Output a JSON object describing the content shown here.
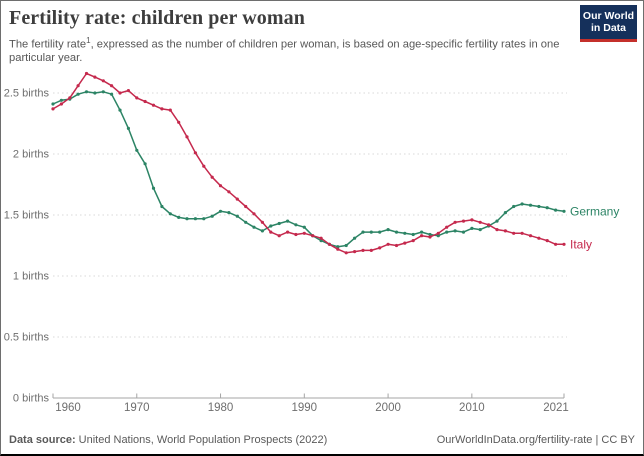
{
  "header": {
    "title": "Fertility rate: children per woman",
    "subtitle_text": "The fertility rate",
    "subtitle_sup": "1",
    "subtitle_rest": ", expressed as the number of children per woman, is based on age-specific fertility rates in one",
    "subtitle_line2": "particular year."
  },
  "logo": {
    "line1": "Our World",
    "line2": "in Data",
    "bg": "#15305B",
    "accent": "#C4302B"
  },
  "chart_data": {
    "type": "line",
    "title": "Fertility rate: children per woman",
    "xlabel": "",
    "ylabel": "births",
    "xlim": [
      1960,
      2021
    ],
    "ylim": [
      0,
      2.72
    ],
    "grid": "horizontal-dotted",
    "legend": "line-end-labels",
    "colors": {
      "grid": "#d8d8d8",
      "axis": "#a5a5a5",
      "tick_text": "#6e6e6e"
    },
    "yticks": [
      {
        "value": 0,
        "label": "0 births"
      },
      {
        "value": 0.5,
        "label": "0.5 births"
      },
      {
        "value": 1,
        "label": "1 births"
      },
      {
        "value": 1.5,
        "label": "1.5 births"
      },
      {
        "value": 2,
        "label": "2 births"
      },
      {
        "value": 2.5,
        "label": "2.5 births"
      }
    ],
    "xticks": [
      {
        "year": 1960,
        "label": "1960"
      },
      {
        "year": 1970,
        "label": "1970"
      },
      {
        "year": 1980,
        "label": "1980"
      },
      {
        "year": 1990,
        "label": "1990"
      },
      {
        "year": 2000,
        "label": "2000"
      },
      {
        "year": 2010,
        "label": "2010"
      },
      {
        "year": 2021,
        "label": "2021"
      }
    ],
    "x": [
      1960,
      1961,
      1962,
      1963,
      1964,
      1965,
      1966,
      1967,
      1968,
      1969,
      1970,
      1971,
      1972,
      1973,
      1974,
      1975,
      1976,
      1977,
      1978,
      1979,
      1980,
      1981,
      1982,
      1983,
      1984,
      1985,
      1986,
      1987,
      1988,
      1989,
      1990,
      1991,
      1992,
      1993,
      1994,
      1995,
      1996,
      1997,
      1998,
      1999,
      2000,
      2001,
      2002,
      2003,
      2004,
      2005,
      2006,
      2007,
      2008,
      2009,
      2010,
      2011,
      2012,
      2013,
      2014,
      2015,
      2016,
      2017,
      2018,
      2019,
      2020,
      2021
    ],
    "series": [
      {
        "name": "Germany",
        "color": "#2C8465",
        "values": [
          2.41,
          2.44,
          2.45,
          2.49,
          2.51,
          2.5,
          2.51,
          2.49,
          2.36,
          2.21,
          2.03,
          1.92,
          1.72,
          1.57,
          1.51,
          1.48,
          1.47,
          1.47,
          1.47,
          1.49,
          1.53,
          1.52,
          1.49,
          1.44,
          1.4,
          1.37,
          1.41,
          1.43,
          1.45,
          1.42,
          1.4,
          1.33,
          1.29,
          1.26,
          1.24,
          1.25,
          1.31,
          1.36,
          1.36,
          1.36,
          1.38,
          1.36,
          1.35,
          1.34,
          1.36,
          1.34,
          1.33,
          1.36,
          1.37,
          1.36,
          1.39,
          1.38,
          1.41,
          1.45,
          1.52,
          1.57,
          1.59,
          1.58,
          1.57,
          1.56,
          1.54,
          1.53
        ]
      },
      {
        "name": "Italy",
        "color": "#C5294D",
        "values": [
          2.37,
          2.41,
          2.46,
          2.56,
          2.66,
          2.63,
          2.6,
          2.56,
          2.5,
          2.52,
          2.46,
          2.43,
          2.4,
          2.37,
          2.36,
          2.26,
          2.14,
          2.01,
          1.9,
          1.81,
          1.74,
          1.69,
          1.63,
          1.57,
          1.51,
          1.44,
          1.36,
          1.33,
          1.36,
          1.34,
          1.35,
          1.33,
          1.31,
          1.26,
          1.22,
          1.19,
          1.2,
          1.21,
          1.21,
          1.23,
          1.26,
          1.25,
          1.27,
          1.29,
          1.33,
          1.32,
          1.35,
          1.4,
          1.44,
          1.45,
          1.46,
          1.44,
          1.42,
          1.38,
          1.37,
          1.35,
          1.35,
          1.33,
          1.31,
          1.29,
          1.26,
          1.26
        ]
      }
    ]
  },
  "footer": {
    "source_label": "Data source:",
    "source_value": "United Nations, World Population Prospects (2022)",
    "credit": "OurWorldInData.org/fertility-rate | CC BY"
  }
}
